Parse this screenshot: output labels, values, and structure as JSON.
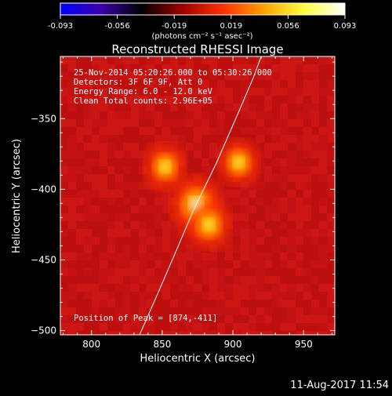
{
  "chart_data": {
    "type": "heatmap",
    "title": "Reconstructed RHESSI Image",
    "xlabel": "Heliocentric X (arcsec)",
    "ylabel": "Heliocentric Y (arcsec)",
    "xlim": [
      778,
      972
    ],
    "ylim": [
      -503,
      -306
    ],
    "xticks": [
      800,
      850,
      900,
      950
    ],
    "yticks": [
      -350,
      -400,
      -450,
      -500
    ],
    "colorbar": {
      "ticks": [
        "-0.093",
        "-0.056",
        "-0.019",
        "0.019",
        "0.056",
        "0.093"
      ],
      "unit_label": "(photons cm⁻² s⁻¹ asec⁻²)",
      "colors": [
        "#0000ff",
        "#3a00aa",
        "#000000",
        "#a00000",
        "#ff3000",
        "#ffa000",
        "#ffff40",
        "#ffffff"
      ]
    },
    "annotations": [
      "25-Nov-2014 05:20:26.000 to 05:30:26.000",
      "Detectors: 3F 6F 9F, Att 0",
      "Energy Range: 6.0 - 12.0 keV",
      "Clean    Total counts: 2.96E+05"
    ],
    "peak_label": "Position of Peak = [874,-411]",
    "peak": [
      874,
      -411
    ],
    "sources": [
      {
        "x": 874,
        "y": -411,
        "intensity": 0.093
      },
      {
        "x": 883,
        "y": -425,
        "intensity": 0.075
      },
      {
        "x": 852,
        "y": -384,
        "intensity": 0.07
      },
      {
        "x": 904,
        "y": -381,
        "intensity": 0.068
      }
    ],
    "limb_curve": [
      [
        834,
        -503
      ],
      [
        845,
        -478
      ],
      [
        858,
        -448
      ],
      [
        872,
        -415
      ],
      [
        888,
        -382
      ],
      [
        902,
        -350
      ],
      [
        914,
        -322
      ],
      [
        920,
        -306
      ]
    ],
    "timestamp": "11-Aug-2017 11:54"
  }
}
